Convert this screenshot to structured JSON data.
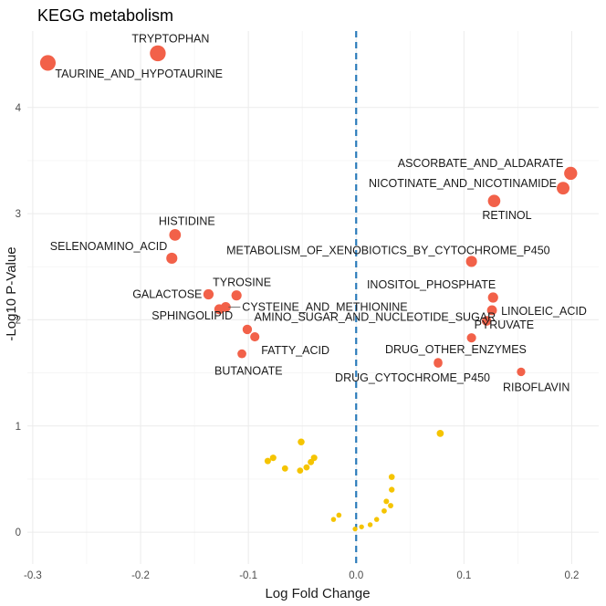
{
  "chart_data": {
    "type": "scatter",
    "title": "KEGG metabolism",
    "xlabel": "Log Fold Change",
    "ylabel": "-Log10 P-Value",
    "xlim": [
      -0.305,
      0.225
    ],
    "ylim": [
      -0.3,
      4.72
    ],
    "x_ticks": [
      -0.3,
      -0.2,
      -0.1,
      0.0,
      0.1,
      0.2
    ],
    "x_tick_labels": [
      "-0.3",
      "-0.2",
      "-0.1",
      "0.0",
      "0.1",
      "0.2"
    ],
    "y_ticks": [
      0,
      1,
      2,
      3,
      4
    ],
    "y_tick_labels": [
      "0",
      "1",
      "2",
      "3",
      "4"
    ],
    "grid": true,
    "legend": "none",
    "reference_line": {
      "x": 0.0,
      "style": "dashed",
      "color": "#2b7bba"
    },
    "colors": {
      "significant": "#f26149",
      "not_significant": "#f5c400"
    },
    "points": [
      {
        "label": "TRYPTOPHAN",
        "x": -0.184,
        "y": 4.51,
        "significant": true
      },
      {
        "label": "TAURINE_AND_HYPOTAURINE",
        "x": -0.286,
        "y": 4.42,
        "significant": true
      },
      {
        "label": "ASCORBATE_AND_ALDARATE",
        "x": 0.199,
        "y": 3.38,
        "significant": true
      },
      {
        "label": "NICOTINATE_AND_NICOTINAMIDE",
        "x": 0.192,
        "y": 3.24,
        "significant": true
      },
      {
        "label": "RETINOL",
        "x": 0.128,
        "y": 3.12,
        "significant": true
      },
      {
        "label": "HISTIDINE",
        "x": -0.168,
        "y": 2.8,
        "significant": true
      },
      {
        "label": "SELENOAMINO_ACID",
        "x": -0.171,
        "y": 2.58,
        "significant": true
      },
      {
        "label": "METABOLISM_OF_XENOBIOTICS_BY_CYTOCHROME_P450",
        "x": 0.107,
        "y": 2.55,
        "significant": true
      },
      {
        "label": "TYROSINE",
        "x": -0.111,
        "y": 2.23,
        "significant": true
      },
      {
        "label": "GALACTOSE",
        "x": -0.137,
        "y": 2.24,
        "significant": true
      },
      {
        "label": "CYSTEINE_AND_METHIONINE",
        "x": -0.121,
        "y": 2.12,
        "significant": true
      },
      {
        "label": "SPHINGOLIPID",
        "x": -0.127,
        "y": 2.1,
        "significant": true
      },
      {
        "label": "INOSITOL_PHOSPHATE",
        "x": 0.127,
        "y": 2.21,
        "significant": true
      },
      {
        "label": "LINOLEIC_ACID",
        "x": 0.126,
        "y": 2.09,
        "significant": true
      },
      {
        "label": "AMINO_SUGAR_AND_NUCLEOTIDE_SUGAR",
        "x": 0.121,
        "y": 1.99,
        "significant": true
      },
      {
        "label": "PYRUVATE",
        "x": 0.107,
        "y": 1.83,
        "significant": true
      },
      {
        "label": "FATTY_ACID",
        "x": -0.094,
        "y": 1.84,
        "significant": true
      },
      {
        "label": "",
        "x": -0.101,
        "y": 1.91,
        "significant": true
      },
      {
        "label": "BUTANOATE",
        "x": -0.106,
        "y": 1.68,
        "significant": true
      },
      {
        "label": "DRUG_OTHER_ENZYMES",
        "x": 0.076,
        "y": 1.6,
        "significant": true
      },
      {
        "label": "DRUG_CYTOCHROME_P450",
        "x": 0.076,
        "y": 1.59,
        "significant": true
      },
      {
        "label": "RIBOFLAVIN",
        "x": 0.153,
        "y": 1.51,
        "significant": true
      },
      {
        "label": "",
        "x": 0.078,
        "y": 0.93,
        "significant": false
      },
      {
        "label": "",
        "x": -0.051,
        "y": 0.85,
        "significant": false
      },
      {
        "label": "",
        "x": -0.077,
        "y": 0.7,
        "significant": false
      },
      {
        "label": "",
        "x": -0.082,
        "y": 0.67,
        "significant": false
      },
      {
        "label": "",
        "x": -0.039,
        "y": 0.7,
        "significant": false
      },
      {
        "label": "",
        "x": -0.042,
        "y": 0.66,
        "significant": false
      },
      {
        "label": "",
        "x": -0.066,
        "y": 0.6,
        "significant": false
      },
      {
        "label": "",
        "x": -0.052,
        "y": 0.58,
        "significant": false
      },
      {
        "label": "",
        "x": -0.046,
        "y": 0.61,
        "significant": false
      },
      {
        "label": "",
        "x": 0.033,
        "y": 0.52,
        "significant": false
      },
      {
        "label": "",
        "x": 0.033,
        "y": 0.4,
        "significant": false
      },
      {
        "label": "",
        "x": 0.028,
        "y": 0.29,
        "significant": false
      },
      {
        "label": "",
        "x": 0.032,
        "y": 0.25,
        "significant": false
      },
      {
        "label": "",
        "x": 0.026,
        "y": 0.2,
        "significant": false
      },
      {
        "label": "",
        "x": 0.019,
        "y": 0.12,
        "significant": false
      },
      {
        "label": "",
        "x": -0.016,
        "y": 0.16,
        "significant": false
      },
      {
        "label": "",
        "x": -0.021,
        "y": 0.12,
        "significant": false
      },
      {
        "label": "",
        "x": 0.005,
        "y": 0.05,
        "significant": false
      },
      {
        "label": "",
        "x": -0.001,
        "y": 0.03,
        "significant": false
      },
      {
        "label": "",
        "x": 0.013,
        "y": 0.07,
        "significant": false
      }
    ]
  }
}
